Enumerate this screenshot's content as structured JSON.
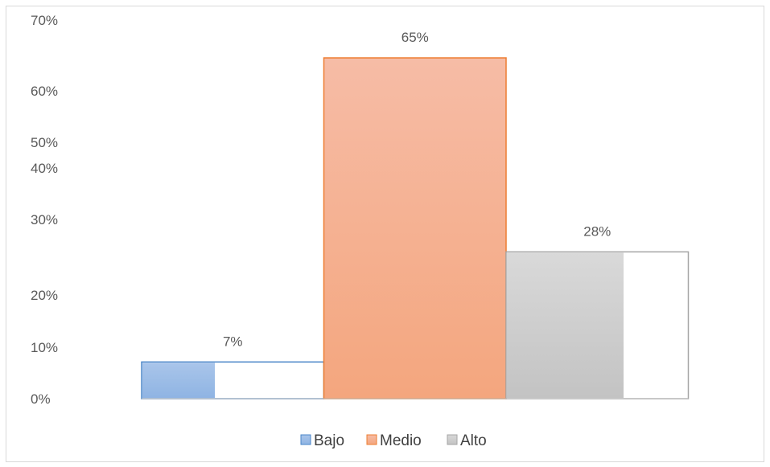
{
  "chart_data": {
    "type": "bar",
    "categories": [
      "Bajo",
      "Medio",
      "Alto"
    ],
    "values": [
      7,
      65,
      28
    ],
    "value_labels": [
      "7%",
      "65%",
      "28%"
    ],
    "y_tick_labels": [
      "0%",
      "10%",
      "20%",
      "30%",
      "40%",
      "50%",
      "60%",
      "70%"
    ],
    "ylim": [
      0,
      70
    ],
    "grid": false,
    "legend": "bottom",
    "title": "",
    "xlabel": "",
    "ylabel": "",
    "colors": {
      "Bajo": {
        "fill_light": "#a9c5ea",
        "fill_dark": "#8fb4e3",
        "stroke": "#4a86c8"
      },
      "Medio": {
        "fill_light": "#f6bca6",
        "fill_dark": "#f4a67e",
        "stroke": "#ed7d31"
      },
      "Alto": {
        "fill_light": "#d9d9d9",
        "fill_dark": "#c3c3c3",
        "stroke": "#a5a5a5"
      }
    },
    "legend_entries": [
      "Bajo",
      "Medio",
      "Alto"
    ]
  }
}
